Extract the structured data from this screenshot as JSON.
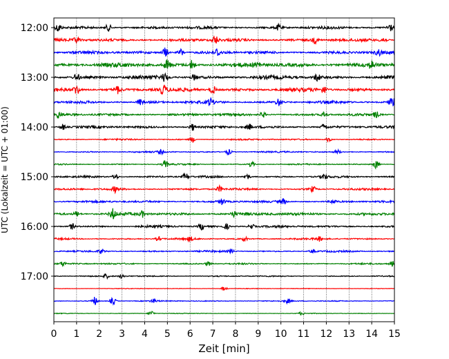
{
  "chart_data": {
    "type": "line",
    "title": "",
    "xlabel": "Zeit  [min]",
    "ylabel": "UTC (Lokalzeit = UTC + 01:00)",
    "xlim": [
      0,
      15
    ],
    "x_ticks": [
      "0",
      "1",
      "2",
      "3",
      "4",
      "5",
      "6",
      "7",
      "8",
      "9",
      "10",
      "11",
      "12",
      "13",
      "14",
      "15"
    ],
    "y_ticks": [
      "12:00",
      "13:00",
      "14:00",
      "15:00",
      "16:00",
      "17:00"
    ],
    "grid_x": true,
    "colors": [
      "#000000",
      "#ff0000",
      "#0000ff",
      "#008000"
    ],
    "traces": [
      {
        "start": "12:00",
        "color": "#000000",
        "amp": 2.2,
        "events": [
          [
            0.2,
            6
          ],
          [
            2.4,
            5
          ],
          [
            9.9,
            4
          ],
          [
            14.8,
            6
          ]
        ]
      },
      {
        "start": "12:15",
        "color": "#ff0000",
        "amp": 2.4,
        "events": [
          [
            1.0,
            4
          ],
          [
            7.1,
            6
          ],
          [
            11.5,
            4
          ],
          [
            14.5,
            5
          ]
        ]
      },
      {
        "start": "12:30",
        "color": "#0000ff",
        "amp": 2.4,
        "events": [
          [
            4.9,
            7
          ],
          [
            5.6,
            5
          ],
          [
            7.2,
            5
          ],
          [
            14.3,
            4
          ]
        ]
      },
      {
        "start": "12:45",
        "color": "#008000",
        "amp": 3.4,
        "events": [
          [
            5.0,
            7
          ],
          [
            6.1,
            7
          ],
          [
            9.0,
            4
          ],
          [
            14.0,
            5
          ]
        ]
      },
      {
        "start": "13:00",
        "color": "#000000",
        "amp": 3.0,
        "events": [
          [
            1.0,
            5
          ],
          [
            4.9,
            6
          ],
          [
            6.2,
            4
          ],
          [
            11.6,
            5
          ]
        ]
      },
      {
        "start": "13:15",
        "color": "#ff0000",
        "amp": 3.0,
        "events": [
          [
            1.0,
            8
          ],
          [
            2.8,
            5
          ],
          [
            4.8,
            6
          ],
          [
            7.0,
            6
          ],
          [
            11.9,
            5
          ]
        ]
      },
      {
        "start": "13:30",
        "color": "#0000ff",
        "amp": 2.2,
        "events": [
          [
            3.8,
            4
          ],
          [
            6.9,
            5
          ],
          [
            9.9,
            5
          ],
          [
            14.9,
            7
          ]
        ]
      },
      {
        "start": "13:45",
        "color": "#008000",
        "amp": 2.0,
        "events": [
          [
            0.2,
            5
          ],
          [
            9.2,
            4
          ],
          [
            11.9,
            4
          ],
          [
            14.2,
            4
          ]
        ]
      },
      {
        "start": "14:00",
        "color": "#000000",
        "amp": 2.0,
        "events": [
          [
            0.4,
            4
          ],
          [
            6.1,
            5
          ],
          [
            8.6,
            4
          ],
          [
            11.9,
            4
          ]
        ]
      },
      {
        "start": "14:15",
        "color": "#ff0000",
        "amp": 1.2,
        "events": [
          [
            6.1,
            4
          ],
          [
            12.1,
            3
          ]
        ]
      },
      {
        "start": "14:30",
        "color": "#0000ff",
        "amp": 1.2,
        "events": [
          [
            4.7,
            3
          ],
          [
            7.7,
            4
          ],
          [
            12.5,
            3
          ]
        ]
      },
      {
        "start": "14:45",
        "color": "#008000",
        "amp": 1.1,
        "events": [
          [
            4.9,
            5
          ],
          [
            8.7,
            4
          ],
          [
            14.2,
            6
          ]
        ]
      },
      {
        "start": "15:00",
        "color": "#000000",
        "amp": 1.6,
        "events": [
          [
            2.7,
            4
          ],
          [
            5.8,
            5
          ],
          [
            8.5,
            4
          ],
          [
            11.9,
            4
          ]
        ]
      },
      {
        "start": "15:15",
        "color": "#ff0000",
        "amp": 1.6,
        "events": [
          [
            2.7,
            4
          ],
          [
            7.3,
            4
          ],
          [
            11.4,
            4
          ]
        ]
      },
      {
        "start": "15:30",
        "color": "#0000ff",
        "amp": 1.8,
        "events": [
          [
            7.4,
            4
          ],
          [
            10.1,
            4
          ],
          [
            12.3,
            3
          ]
        ]
      },
      {
        "start": "15:45",
        "color": "#008000",
        "amp": 2.4,
        "events": [
          [
            1.0,
            4
          ],
          [
            2.6,
            7
          ],
          [
            3.9,
            4
          ],
          [
            7.9,
            4
          ]
        ]
      },
      {
        "start": "16:00",
        "color": "#000000",
        "amp": 1.8,
        "events": [
          [
            0.8,
            4
          ],
          [
            6.5,
            5
          ],
          [
            7.6,
            4
          ],
          [
            8.7,
            4
          ]
        ]
      },
      {
        "start": "16:15",
        "color": "#ff0000",
        "amp": 1.4,
        "events": [
          [
            4.6,
            3
          ],
          [
            6.0,
            3
          ],
          [
            8.4,
            3
          ],
          [
            11.7,
            3
          ]
        ]
      },
      {
        "start": "16:30",
        "color": "#0000ff",
        "amp": 1.4,
        "events": [
          [
            2.1,
            3
          ],
          [
            7.8,
            3
          ],
          [
            11.4,
            3
          ]
        ]
      },
      {
        "start": "16:45",
        "color": "#008000",
        "amp": 1.2,
        "events": [
          [
            0.4,
            3
          ],
          [
            6.8,
            3
          ],
          [
            14.9,
            4
          ]
        ]
      },
      {
        "start": "17:00",
        "color": "#000000",
        "amp": 1.0,
        "events": [
          [
            2.3,
            3
          ],
          [
            3.0,
            3
          ]
        ]
      },
      {
        "start": "17:15",
        "color": "#ff0000",
        "amp": 0.5,
        "events": [
          [
            7.5,
            3
          ]
        ]
      },
      {
        "start": "17:30",
        "color": "#0000ff",
        "amp": 0.9,
        "events": [
          [
            1.8,
            6
          ],
          [
            2.6,
            5
          ],
          [
            4.4,
            3
          ],
          [
            10.3,
            3
          ]
        ]
      },
      {
        "start": "17:45",
        "color": "#008000",
        "amp": 0.6,
        "events": [
          [
            4.3,
            4
          ],
          [
            10.9,
            2
          ]
        ]
      }
    ]
  }
}
